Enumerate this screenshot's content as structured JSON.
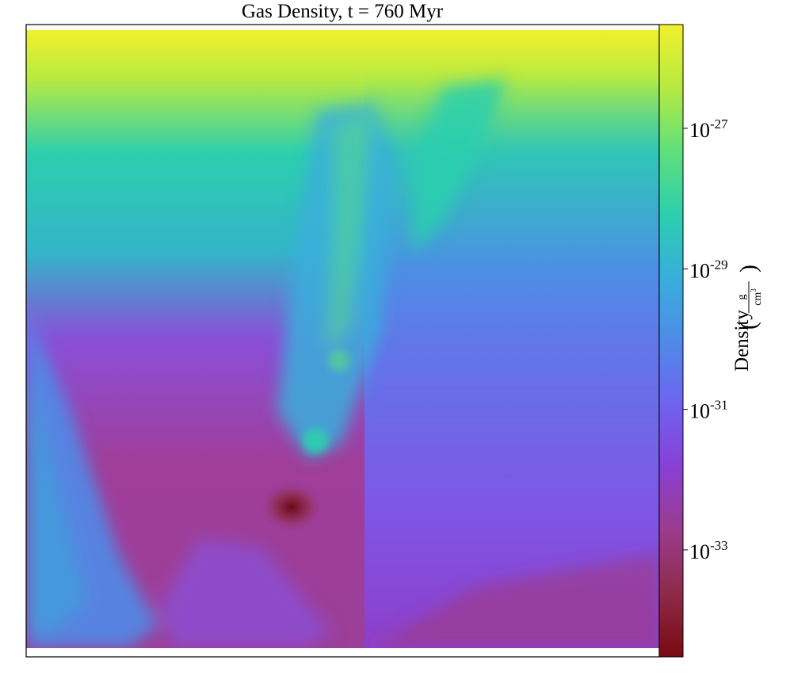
{
  "chart_data": {
    "type": "heatmap",
    "title": "Gas Density, t = 760 Myr",
    "colorbar": {
      "label": "Density",
      "unit_numerator": "g",
      "unit_denominator_base": "cm",
      "unit_denominator_exp": "3",
      "scale": "log",
      "range": [
        3e-35,
        3e-26
      ],
      "ticks": [
        {
          "value": 1e-27,
          "base": "10",
          "exp": "-27"
        },
        {
          "value": 1e-29,
          "base": "10",
          "exp": "-29"
        },
        {
          "value": 1e-31,
          "base": "10",
          "exp": "-31"
        },
        {
          "value": 1e-33,
          "base": "10",
          "exp": "-33"
        }
      ],
      "colors": [
        "#7a0a10",
        "#8e2a4a",
        "#9b3c8c",
        "#8a3fd6",
        "#6f63f0",
        "#4f8be8",
        "#38aedb",
        "#2ccfae",
        "#5fe07a",
        "#b6ea42",
        "#f2f02a"
      ]
    },
    "grid": false,
    "legend": "none"
  }
}
